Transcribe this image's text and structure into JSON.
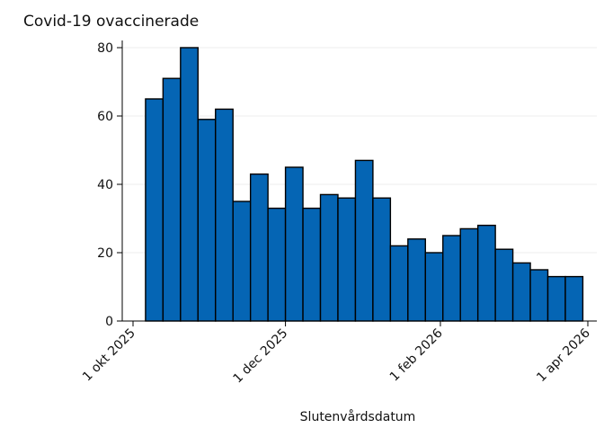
{
  "chart_data": {
    "type": "bar",
    "title": "Covid-19 ovaccinerade",
    "xlabel": "Slutenvårdsdatum",
    "ylabel": "",
    "ylim": [
      0,
      80
    ],
    "yticks": [
      0,
      20,
      40,
      60,
      80
    ],
    "x_ticks": [
      {
        "date": "2025-10-01",
        "label": "1 okt 2025"
      },
      {
        "date": "2025-12-01",
        "label": "1 dec 2025"
      },
      {
        "date": "2026-02-01",
        "label": "1 feb 2026"
      },
      {
        "date": "2026-04-01",
        "label": "1 apr 2026"
      }
    ],
    "xlim": [
      "2025-10-01",
      "2026-04-01"
    ],
    "bar_width_days": 7,
    "grid": true,
    "bar_color": "#0565b4",
    "bars": [
      {
        "week_start": "2025-10-06",
        "value": 65
      },
      {
        "week_start": "2025-10-13",
        "value": 71
      },
      {
        "week_start": "2025-10-20",
        "value": 80
      },
      {
        "week_start": "2025-10-27",
        "value": 59
      },
      {
        "week_start": "2025-11-03",
        "value": 62
      },
      {
        "week_start": "2025-11-10",
        "value": 35
      },
      {
        "week_start": "2025-11-17",
        "value": 43
      },
      {
        "week_start": "2025-11-24",
        "value": 33
      },
      {
        "week_start": "2025-12-01",
        "value": 45
      },
      {
        "week_start": "2025-12-08",
        "value": 33
      },
      {
        "week_start": "2025-12-15",
        "value": 37
      },
      {
        "week_start": "2025-12-22",
        "value": 36
      },
      {
        "week_start": "2025-12-29",
        "value": 47
      },
      {
        "week_start": "2026-01-05",
        "value": 36
      },
      {
        "week_start": "2026-01-12",
        "value": 22
      },
      {
        "week_start": "2026-01-19",
        "value": 24
      },
      {
        "week_start": "2026-01-26",
        "value": 20
      },
      {
        "week_start": "2026-02-02",
        "value": 25
      },
      {
        "week_start": "2026-02-09",
        "value": 27
      },
      {
        "week_start": "2026-02-16",
        "value": 28
      },
      {
        "week_start": "2026-02-23",
        "value": 21
      },
      {
        "week_start": "2026-03-02",
        "value": 17
      },
      {
        "week_start": "2026-03-09",
        "value": 15
      },
      {
        "week_start": "2026-03-16",
        "value": 13
      },
      {
        "week_start": "2026-03-23",
        "value": 13
      }
    ]
  }
}
